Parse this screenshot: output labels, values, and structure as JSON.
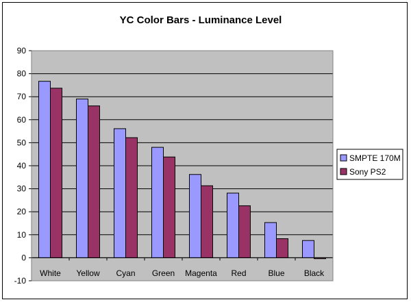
{
  "chart_data": {
    "type": "bar",
    "title": "YC Color Bars - Luminance Level",
    "xlabel": "",
    "ylabel": "",
    "categories": [
      "White",
      "Yellow",
      "Cyan",
      "Green",
      "Magenta",
      "Red",
      "Blue",
      "Black"
    ],
    "series": [
      {
        "name": "SMPTE 170M",
        "color": "#9999ff",
        "values": [
          76.7,
          69,
          56.1,
          48,
          36.2,
          28.1,
          15.3,
          7.5
        ]
      },
      {
        "name": "Sony PS2",
        "color": "#993366",
        "values": [
          73.7,
          66,
          52.2,
          43.8,
          31.3,
          22.6,
          8.3,
          -0.4
        ]
      }
    ],
    "ylim": [
      -10,
      90
    ],
    "yticks": [
      "-10",
      "0",
      "10",
      "20",
      "30",
      "40",
      "50",
      "60",
      "70",
      "80",
      "90"
    ],
    "grid": true,
    "plot_background": "#c0c0c0",
    "legend_position": "right"
  }
}
